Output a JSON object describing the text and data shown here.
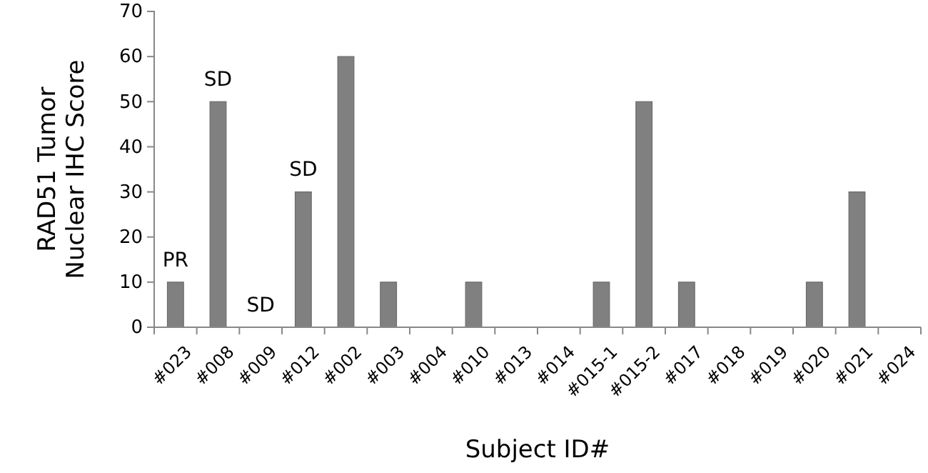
{
  "chart_data": {
    "type": "bar",
    "xlabel": "Subject ID#",
    "ylabel": "RAD51 Tumor Nuclear IHC Score",
    "categories": [
      "#023",
      "#008",
      "#009",
      "#012",
      "#002",
      "#003",
      "#004",
      "#010",
      "#013",
      "#014",
      "#015-1",
      "#015-2",
      "#017",
      "#018",
      "#019",
      "#020",
      "#021",
      "#024"
    ],
    "values": [
      10,
      50,
      0,
      30,
      60,
      10,
      0,
      10,
      0,
      0,
      10,
      50,
      10,
      0,
      0,
      10,
      30,
      0
    ],
    "color": "#808080",
    "ylim": [
      0,
      70
    ],
    "yticks": [
      0,
      10,
      20,
      30,
      40,
      50,
      60,
      70
    ],
    "annotations": [
      {
        "text": "PR",
        "x": "#023",
        "y": 10
      },
      {
        "text": "SD",
        "x": "#008",
        "y": 50
      },
      {
        "text": "SD",
        "x": "#009",
        "y": 0
      },
      {
        "text": "SD",
        "x": "#012",
        "y": 30
      }
    ]
  }
}
